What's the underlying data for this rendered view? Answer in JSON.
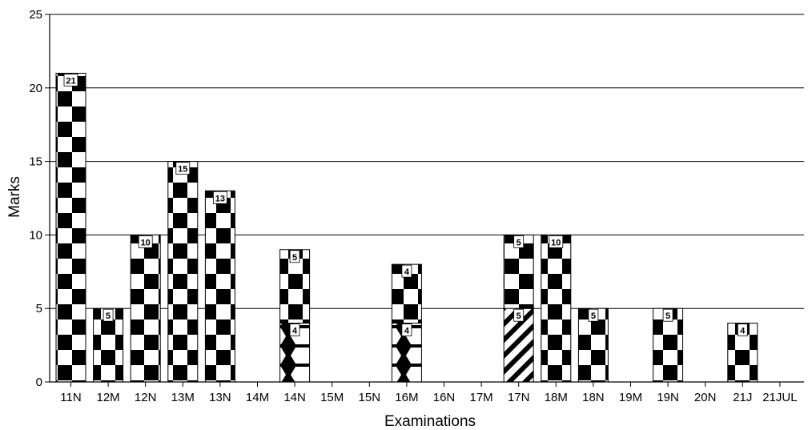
{
  "chart_data": {
    "type": "bar",
    "stacked": true,
    "xlabel": "Examinations",
    "ylabel": "Marks",
    "ylim": [
      0,
      25
    ],
    "yticks": [
      0,
      5,
      10,
      15,
      20,
      25
    ],
    "grid": "horizontal",
    "categories": [
      "11N",
      "12M",
      "12N",
      "13M",
      "13N",
      "14M",
      "14N",
      "15M",
      "15N",
      "16M",
      "16N",
      "17M",
      "17N",
      "18M",
      "18N",
      "19M",
      "19N",
      "20N",
      "21J",
      "21JUL"
    ],
    "series": [
      {
        "pattern": "honeycomb",
        "values": [
          0,
          0,
          0,
          0,
          0,
          0,
          4,
          0,
          0,
          4,
          0,
          0,
          0,
          0,
          0,
          0,
          0,
          0,
          0,
          0
        ]
      },
      {
        "pattern": "diagonal",
        "values": [
          0,
          0,
          0,
          0,
          0,
          0,
          0,
          0,
          0,
          0,
          0,
          0,
          5,
          0,
          0,
          0,
          0,
          0,
          0,
          0
        ]
      },
      {
        "pattern": "checker",
        "values": [
          21,
          5,
          10,
          15,
          13,
          0,
          5,
          0,
          0,
          4,
          0,
          0,
          5,
          10,
          5,
          0,
          5,
          0,
          4,
          0
        ]
      }
    ]
  }
}
